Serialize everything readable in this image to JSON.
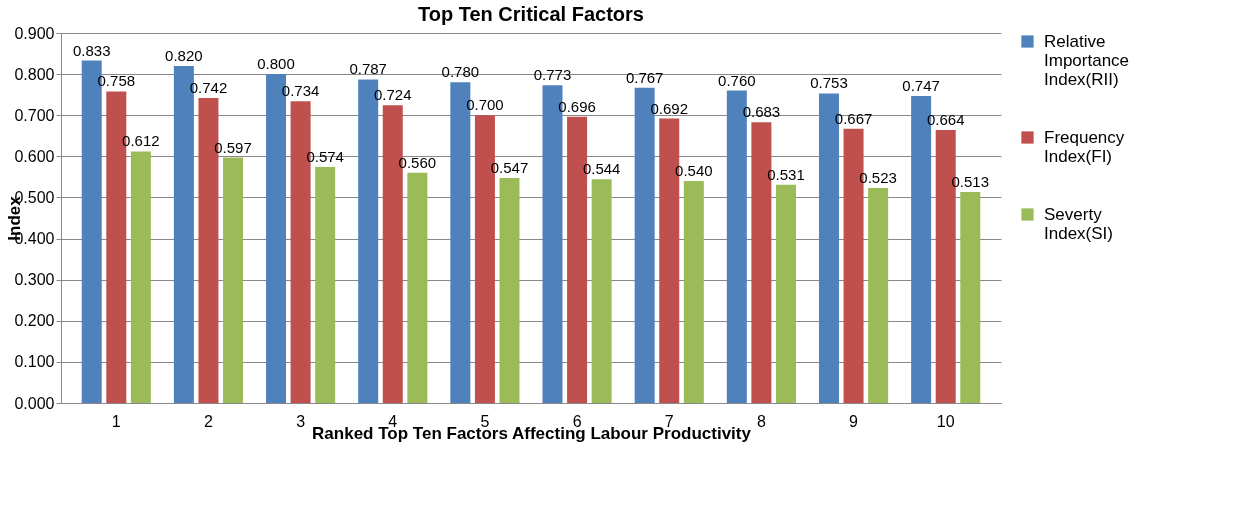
{
  "chart_data": {
    "type": "bar",
    "title": "Top Ten Critical Factors",
    "xlabel": "Ranked Top Ten Factors Affecting Labour Productivity",
    "ylabel": "Index",
    "categories": [
      "1",
      "2",
      "3",
      "4",
      "5",
      "6",
      "7",
      "8",
      "9",
      "10"
    ],
    "series": [
      {
        "name": "Relative Importance Index(RII)",
        "color": "#4f81bd",
        "values": [
          0.833,
          0.82,
          0.8,
          0.787,
          0.78,
          0.773,
          0.767,
          0.76,
          0.753,
          0.747
        ],
        "value_labels": [
          "0.833",
          "0.820",
          "0.800",
          "0.787",
          "0.780",
          "0.773",
          "0.767",
          "0.760",
          "0.753",
          "0.747"
        ]
      },
      {
        "name": "Frequency Index(FI)",
        "color": "#c0504d",
        "values": [
          0.758,
          0.742,
          0.734,
          0.724,
          0.7,
          0.696,
          0.692,
          0.683,
          0.667,
          0.664
        ],
        "value_labels": [
          "0.758",
          "0.742",
          "0.734",
          "0.724",
          "0.700",
          "0.696",
          "0.692",
          "0.683",
          "0.667",
          "0.664"
        ]
      },
      {
        "name": "Severty Index(SI)",
        "color": "#9bbb59",
        "values": [
          0.612,
          0.597,
          0.574,
          0.56,
          0.547,
          0.544,
          0.54,
          0.531,
          0.523,
          0.513
        ],
        "value_labels": [
          "0.612",
          "0.597",
          "0.574",
          "0.560",
          "0.547",
          "0.544",
          "0.540",
          "0.531",
          "0.523",
          "0.513"
        ]
      }
    ],
    "ylim": [
      0,
      0.9
    ],
    "yticks": [
      {
        "value": 0,
        "label": "0.000"
      },
      {
        "value": 0.1,
        "label": "0.100"
      },
      {
        "value": 0.2,
        "label": "0.200"
      },
      {
        "value": 0.3,
        "label": "0.300"
      },
      {
        "value": 0.4,
        "label": "0.400"
      },
      {
        "value": 0.5,
        "label": "0.500"
      },
      {
        "value": 0.6,
        "label": "0.600"
      },
      {
        "value": 0.7,
        "label": "0.700"
      },
      {
        "value": 0.8,
        "label": "0.800"
      },
      {
        "value": 0.9,
        "label": "0.900"
      }
    ],
    "grid": "y",
    "legend": "right"
  }
}
